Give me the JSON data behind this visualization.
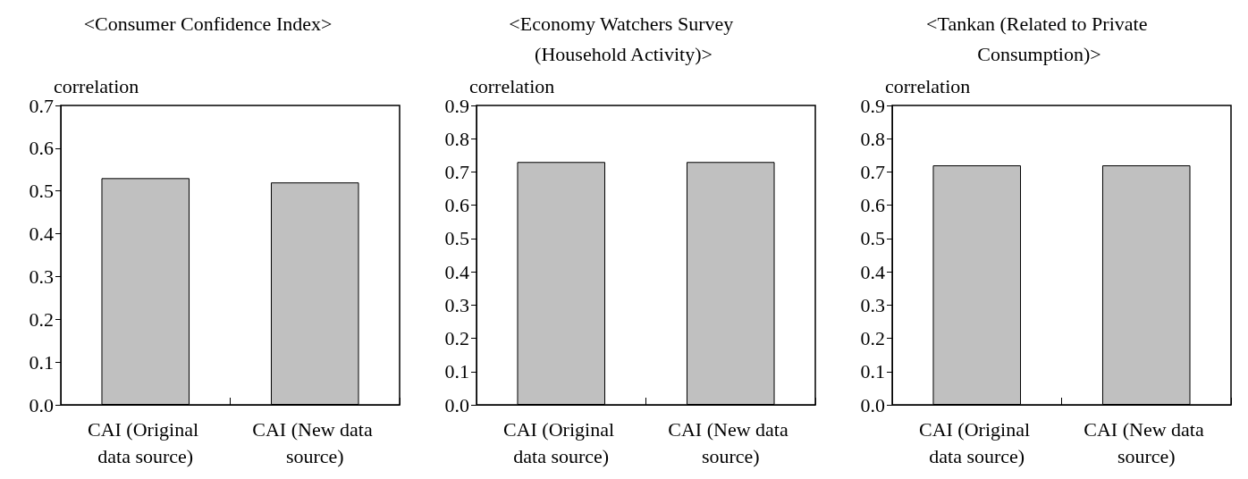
{
  "chart_data": [
    {
      "type": "bar",
      "title": "<Consumer Confidence Index>",
      "ylabel": "correlation",
      "categories": [
        "CAI (Original data source)",
        "CAI (New data source)"
      ],
      "values": [
        0.53,
        0.52
      ],
      "color": "#c0c0c0",
      "ylim": [
        0,
        0.7
      ],
      "yticks": [
        {
          "value": 0,
          "label": "0.0"
        },
        {
          "value": 0.1,
          "label": "0.1"
        },
        {
          "value": 0.2,
          "label": "0.2"
        },
        {
          "value": 0.3,
          "label": "0.3"
        },
        {
          "value": 0.4,
          "label": "0.4"
        },
        {
          "value": 0.5,
          "label": "0.5"
        },
        {
          "value": 0.6,
          "label": "0.6"
        },
        {
          "value": 0.7,
          "label": "0.7"
        }
      ],
      "grid": false
    },
    {
      "type": "bar",
      "title": "<Economy Watchers Survey (Household Activity)>",
      "ylabel": "correlation",
      "categories": [
        "CAI (Original data source)",
        "CAI (New data source)"
      ],
      "values": [
        0.73,
        0.73
      ],
      "color": "#c0c0c0",
      "ylim": [
        0,
        0.9
      ],
      "yticks": [
        {
          "value": 0,
          "label": "0.0"
        },
        {
          "value": 0.1,
          "label": "0.1"
        },
        {
          "value": 0.2,
          "label": "0.2"
        },
        {
          "value": 0.3,
          "label": "0.3"
        },
        {
          "value": 0.4,
          "label": "0.4"
        },
        {
          "value": 0.5,
          "label": "0.5"
        },
        {
          "value": 0.6,
          "label": "0.6"
        },
        {
          "value": 0.7,
          "label": "0.7"
        },
        {
          "value": 0.8,
          "label": "0.8"
        },
        {
          "value": 0.9,
          "label": "0.9"
        }
      ],
      "grid": false
    },
    {
      "type": "bar",
      "title": "<Tankan (Related to Private Consumption)>",
      "ylabel": "correlation",
      "categories": [
        "CAI (Original data source)",
        "CAI (New data source)"
      ],
      "values": [
        0.72,
        0.72
      ],
      "color": "#c0c0c0",
      "ylim": [
        0,
        0.9
      ],
      "yticks": [
        {
          "value": 0,
          "label": "0.0"
        },
        {
          "value": 0.1,
          "label": "0.1"
        },
        {
          "value": 0.2,
          "label": "0.2"
        },
        {
          "value": 0.3,
          "label": "0.3"
        },
        {
          "value": 0.4,
          "label": "0.4"
        },
        {
          "value": 0.5,
          "label": "0.5"
        },
        {
          "value": 0.6,
          "label": "0.6"
        },
        {
          "value": 0.7,
          "label": "0.7"
        },
        {
          "value": 0.8,
          "label": "0.8"
        },
        {
          "value": 0.9,
          "label": "0.9"
        }
      ],
      "grid": false
    }
  ]
}
